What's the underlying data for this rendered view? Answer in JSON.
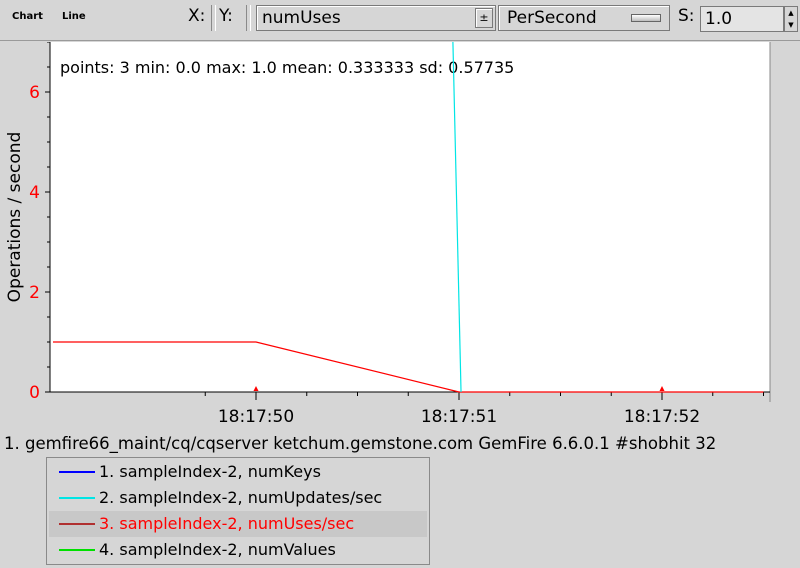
{
  "toolbar": {
    "menu_chart": "Chart",
    "menu_line": "Line",
    "x_label": "X:",
    "y_label": "Y:",
    "y_value": "numUses",
    "combo_arrow": "±",
    "mode_value": "PerSecond",
    "s_label": "S:",
    "s_value": "1.0"
  },
  "chart_data": {
    "type": "line",
    "ylabel": "Operations / second",
    "ylim": [
      0,
      7
    ],
    "yticks": [
      0,
      2,
      4,
      6
    ],
    "xticks": [
      "18:17:50",
      "18:17:51",
      "18:17:52"
    ],
    "stats": "points: 3 min: 0.0 max: 1.0 mean: 0.333333 sd: 0.57735",
    "series": [
      {
        "name": "numUses/sec",
        "color": "#ff0000",
        "x": [
          "18:17:49",
          "18:17:50",
          "18:17:51",
          "18:17:52.5"
        ],
        "values": [
          1.0,
          1.0,
          0.0,
          0.0
        ]
      },
      {
        "name": "numUpdates/sec",
        "color": "#00e5e5",
        "x": [
          "18:17:50.97",
          "18:17:51.01"
        ],
        "values": [
          7.2,
          0.0
        ]
      }
    ],
    "markers": [
      "18:17:50",
      "18:17:52"
    ]
  },
  "source_line": "1. gemfire66_maint/cq/cqserver ketchum.gemstone.com GemFire 6.6.0.1 #shobhit 32",
  "legend": {
    "items": [
      {
        "label": "1.  sampleIndex-2, numKeys",
        "color": "#0000ff",
        "text_color": "#000000",
        "selected": false
      },
      {
        "label": "2.  sampleIndex-2, numUpdates/sec",
        "color": "#00e5e5",
        "text_color": "#000000",
        "selected": false
      },
      {
        "label": "3.  sampleIndex-2, numUses/sec",
        "color": "#b03030",
        "text_color": "#ff0000",
        "selected": true
      },
      {
        "label": "4.  sampleIndex-2, numValues",
        "color": "#00e000",
        "text_color": "#000000",
        "selected": false
      }
    ]
  }
}
